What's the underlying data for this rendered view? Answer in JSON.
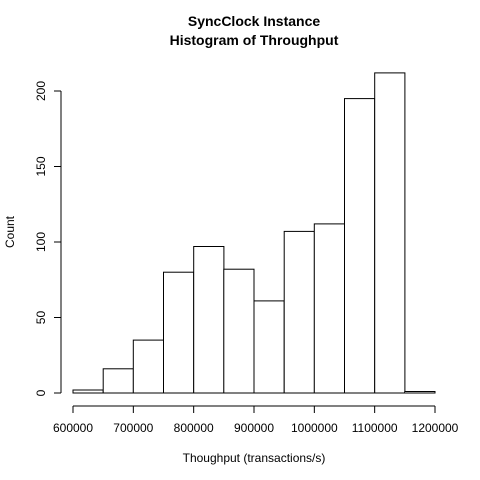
{
  "chart_data": {
    "type": "bar",
    "title": "SyncClock Instance",
    "subtitle": "Histogram of Throughput",
    "xlabel": "Thoughput (transactions/s)",
    "ylabel": "Count",
    "bins": [
      {
        "start": 600000,
        "end": 650000,
        "count": 2
      },
      {
        "start": 650000,
        "end": 700000,
        "count": 16
      },
      {
        "start": 700000,
        "end": 750000,
        "count": 35
      },
      {
        "start": 750000,
        "end": 800000,
        "count": 80
      },
      {
        "start": 800000,
        "end": 850000,
        "count": 97
      },
      {
        "start": 850000,
        "end": 900000,
        "count": 82
      },
      {
        "start": 900000,
        "end": 950000,
        "count": 61
      },
      {
        "start": 950000,
        "end": 1000000,
        "count": 107
      },
      {
        "start": 1000000,
        "end": 1050000,
        "count": 112
      },
      {
        "start": 1050000,
        "end": 1100000,
        "count": 195
      },
      {
        "start": 1100000,
        "end": 1150000,
        "count": 212
      },
      {
        "start": 1150000,
        "end": 1200000,
        "count": 1
      }
    ],
    "xlim": [
      600000,
      1200000
    ],
    "ylim": [
      0,
      212
    ],
    "x_ticks": [
      "600000",
      "700000",
      "800000",
      "900000",
      "1000000",
      "1100000",
      "1200000"
    ],
    "y_ticks": [
      "0",
      "50",
      "100",
      "150",
      "200"
    ],
    "grid": false,
    "legend": "none",
    "bar_fill": "#ffffff",
    "bar_stroke": "#000000"
  }
}
